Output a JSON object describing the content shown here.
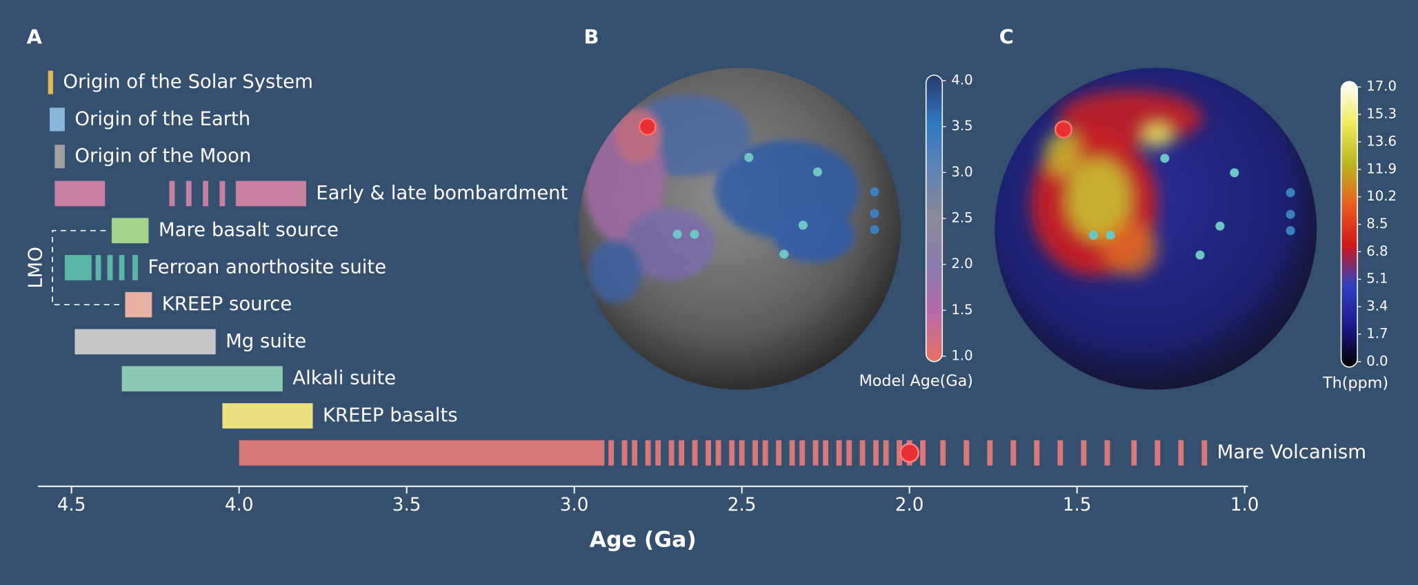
{
  "chart_data": [
    {
      "type": "timeline",
      "panel": "A",
      "xlabel": "Age (Ga)",
      "xlim": [
        4.6,
        0.99
      ],
      "xticks": [
        4.5,
        {
          "value": 4,
          "label": "4.0"
        },
        3.5,
        {
          "value": 3,
          "label": "3.0"
        },
        2.5,
        {
          "value": 2,
          "label": "2.0"
        },
        1.5,
        {
          "value": 1,
          "label": "1.0"
        }
      ],
      "bracket_label": "LMO",
      "rows": [
        {
          "label": "Origin of the Solar System",
          "color": "#e2b85a",
          "segments": [
            [
              4.57,
              4.555
            ]
          ],
          "dashes": []
        },
        {
          "label": "Origin of the Earth",
          "color": "#8ab6dc",
          "segments": [
            [
              4.565,
              4.52
            ]
          ],
          "dashes": []
        },
        {
          "label": "Origin of the Moon",
          "color": "#a0a0a0",
          "segments": [
            [
              4.55,
              4.52
            ]
          ],
          "dashes": []
        },
        {
          "label": "Early & late bombardment",
          "color": "#c7809f",
          "segments": [
            [
              4.55,
              4.4
            ],
            [
              4.01,
              3.8
            ]
          ],
          "dashes": [
            4.2,
            4.15,
            4.1,
            4.05
          ]
        },
        {
          "label": "Mare basalt source",
          "color": "#a6d38a",
          "segments": [
            [
              4.38,
              4.27
            ]
          ],
          "dashes": []
        },
        {
          "label": "Ferroan anorthosite suite",
          "color": "#5ab6a5",
          "segments": [
            [
              4.52,
              4.44
            ]
          ],
          "dashes": [
            4.42,
            4.385,
            4.35,
            4.31
          ]
        },
        {
          "label": "KREEP source",
          "color": "#e8b0a0",
          "segments": [
            [
              4.34,
              4.26
            ]
          ],
          "dashes": []
        },
        {
          "label": "Mg suite",
          "color": "#c8c8c8",
          "segments": [
            [
              4.49,
              4.07
            ]
          ],
          "dashes": []
        },
        {
          "label": "Alkali suite",
          "color": "#8ccab4",
          "segments": [
            [
              4.35,
              3.87
            ]
          ],
          "dashes": []
        },
        {
          "label": "KREEP basalts",
          "color": "#ebe07e",
          "segments": [
            [
              4.05,
              3.78
            ]
          ],
          "dashes": []
        },
        {
          "label": "Mare Volcanism",
          "color": "#d97878",
          "segments": [
            [
              4.0,
              2.91
            ]
          ],
          "dashes": [
            2.89,
            2.85,
            2.82,
            2.78,
            2.75,
            2.71,
            2.68,
            2.64,
            2.6,
            2.57,
            2.53,
            2.5,
            2.46,
            2.43,
            2.39,
            2.35,
            2.32,
            2.28,
            2.25,
            2.21,
            2.18,
            2.14,
            2.1,
            2.07,
            2.03,
            2.0,
            1.96,
            1.9,
            1.83,
            1.76,
            1.69,
            1.62,
            1.55,
            1.48,
            1.41,
            1.33,
            1.26,
            1.19,
            1.12
          ],
          "highlight": 2.0
        }
      ]
    },
    {
      "type": "map",
      "panel": "B",
      "colorbar_label": "Model Age(Ga)",
      "clim": [
        1,
        4
      ],
      "colormap": [
        "#e8705e",
        "#b86aa8",
        "#8a7cb0",
        "#8a8a96",
        "#5f83b5",
        "#2f78c0",
        "#263a6a"
      ],
      "cticks": [
        {
          "value": 1,
          "label": "1.0"
        },
        1.5,
        {
          "value": 2,
          "label": "2.0"
        },
        2.5,
        {
          "value": 3,
          "label": "3.0"
        },
        3.5,
        {
          "value": 4,
          "label": "4.0"
        }
      ]
    },
    {
      "type": "map",
      "panel": "C",
      "colorbar_label": "Th(ppm)",
      "clim": [
        0,
        17
      ],
      "colormap": [
        "#000000",
        "#1a1a8a",
        "#3040c0",
        "#d01818",
        "#e86020",
        "#b8b820",
        "#f0ec60",
        "#ffffff"
      ],
      "cticks": [
        {
          "value": 0,
          "label": "0.0"
        },
        1.7,
        3.4,
        5.1,
        6.8,
        8.5,
        10.2,
        11.9,
        13.6,
        15.3,
        {
          "value": 17,
          "label": "17.0"
        }
      ]
    }
  ]
}
